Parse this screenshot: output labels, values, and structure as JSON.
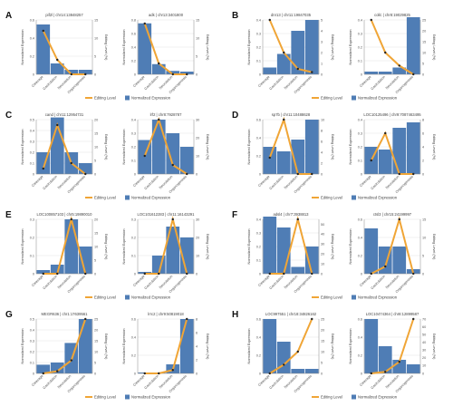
{
  "figure": {
    "legend": {
      "editing": "Editing Level",
      "expression": "Normalized Expression"
    },
    "bar_color": "#4f7db5",
    "line_color": "#f0a536",
    "point_color": "#222222",
    "grid_color": "#e2e2e2"
  },
  "chart_data": [
    {
      "panel": "A",
      "title": "pif2l | chr14:13848257",
      "type": "bar+line",
      "categories": [
        "Cleavage",
        "Gastrulation",
        "Neurulation",
        "Organogenesis"
      ],
      "bars": [
        0.55,
        0.12,
        0.05,
        0.05
      ],
      "ylim_left": [
        0,
        0.6
      ],
      "yticks_left": [
        0,
        0.2,
        0.4,
        0.6
      ],
      "line": [
        12,
        4,
        0,
        0
      ],
      "ylim_right": [
        0,
        15
      ],
      "yticks_right": [
        0,
        5,
        10,
        15
      ],
      "ylabel_left": "Normalized Expression",
      "ylabel_right": "Editing Level (%)"
    },
    {
      "panel": "A",
      "title": "adk | chr13:3401800",
      "type": "bar+line",
      "categories": [
        "Cleavage",
        "Gastrulation",
        "Neurulation",
        "Organogenesis"
      ],
      "bars": [
        0.75,
        0.15,
        0.05,
        0.04
      ],
      "ylim_left": [
        0,
        0.8
      ],
      "yticks_left": [
        0,
        0.2,
        0.4,
        0.6,
        0.8
      ],
      "line": [
        14,
        3,
        0,
        0
      ],
      "ylim_right": [
        0,
        15
      ],
      "yticks_right": [
        0,
        5,
        10,
        15
      ],
      "ylabel_left": "Normalized Expression",
      "ylabel_right": "Editing Level (%)"
    },
    {
      "panel": "B",
      "title": "dnr13 | chr11:19847035",
      "type": "bar+line",
      "categories": [
        "Cleavage",
        "Gastrulation",
        "Neurulation",
        "Organogenesis"
      ],
      "bars": [
        0.05,
        0.15,
        0.32,
        0.4
      ],
      "ylim_left": [
        0,
        0.4
      ],
      "yticks_left": [
        0,
        0.1,
        0.2,
        0.3,
        0.4
      ],
      "line": [
        5,
        2,
        0.5,
        0.2
      ],
      "ylim_right": [
        0,
        5
      ],
      "yticks_right": [
        0,
        1,
        2,
        3,
        4,
        5
      ],
      "ylabel_left": "Normalized Expression",
      "ylabel_right": "Editing Level (%)"
    },
    {
      "panel": "B",
      "title": "collc | chr8:19029825",
      "type": "bar+line",
      "categories": [
        "Cleavage",
        "Gastrulation",
        "Neurulation",
        "Organogenesis"
      ],
      "bars": [
        0.02,
        0.02,
        0.05,
        0.42
      ],
      "ylim_left": [
        0,
        0.4
      ],
      "yticks_left": [
        0,
        0.1,
        0.2,
        0.3,
        0.4
      ],
      "line": [
        25,
        10,
        4,
        0
      ],
      "ylim_right": [
        0,
        25
      ],
      "yticks_right": [
        0,
        5,
        10,
        15,
        20,
        25
      ],
      "ylabel_left": "Normalized Expression",
      "ylabel_right": "Editing Level (%)"
    },
    {
      "panel": "C",
      "title": "cand | chr11:12954731",
      "type": "bar+line",
      "categories": [
        "Cleavage",
        "Gastrulation",
        "Neurulation",
        "Organogenesis"
      ],
      "bars": [
        0.2,
        0.52,
        0.2,
        0.1
      ],
      "ylim_left": [
        0,
        0.5
      ],
      "yticks_left": [
        0,
        0.1,
        0.2,
        0.3,
        0.4,
        0.5
      ],
      "line": [
        2,
        18,
        4,
        0
      ],
      "ylim_right": [
        0,
        20
      ],
      "yticks_right": [
        0,
        5,
        10,
        15,
        20
      ],
      "ylabel_left": "Normalized Expression",
      "ylabel_right": "Editing Level (%)"
    },
    {
      "panel": "C",
      "title": "lrf2 | chr8:7928787",
      "type": "bar+line",
      "categories": [
        "Cleavage",
        "Gastrulation",
        "Neurulation",
        "Organogenesis"
      ],
      "bars": [
        0.25,
        0.4,
        0.3,
        0.2
      ],
      "ylim_left": [
        0,
        0.4
      ],
      "yticks_left": [
        0,
        0.1,
        0.2,
        0.3,
        0.4
      ],
      "line": [
        10,
        30,
        5,
        0
      ],
      "ylim_right": [
        0,
        30
      ],
      "yticks_right": [
        0,
        10,
        20,
        30
      ],
      "ylabel_left": "Normalized Expression",
      "ylabel_right": "Editing Level (%)"
    },
    {
      "panel": "D",
      "title": "sp7b | chr11:10488628",
      "type": "bar+line",
      "categories": [
        "Cleavage",
        "Gastrulation",
        "Neurulation",
        "Organogenesis"
      ],
      "bars": [
        0.3,
        0.25,
        0.38,
        0.6
      ],
      "ylim_left": [
        0,
        0.6
      ],
      "yticks_left": [
        0,
        0.2,
        0.4,
        0.6
      ],
      "line": [
        3,
        10,
        0,
        0
      ],
      "ylim_right": [
        0,
        10
      ],
      "yticks_right": [
        0,
        2,
        4,
        6,
        8,
        10
      ],
      "ylabel_left": "Normalized Expression",
      "ylabel_right": "Editing Level (%)"
    },
    {
      "panel": "D",
      "title": "LOC10125496 | chr9:7087463495",
      "type": "bar+line",
      "categories": [
        "Cleavage",
        "Gastrulation",
        "Neurulation",
        "Organogenesis"
      ],
      "bars": [
        0.2,
        0.18,
        0.34,
        0.38
      ],
      "ylim_left": [
        0,
        0.4
      ],
      "yticks_left": [
        0,
        0.1,
        0.2,
        0.3,
        0.4
      ],
      "line": [
        2,
        6,
        0,
        0
      ],
      "ylim_right": [
        0,
        8
      ],
      "yticks_right": [
        0,
        2,
        4,
        6,
        8
      ],
      "ylabel_left": "Normalized Expression",
      "ylabel_right": "Editing Level (%)"
    },
    {
      "panel": "E",
      "title": "LOC100857103 | chr5:19890010",
      "type": "bar+line",
      "categories": [
        "Cleavage",
        "Gastrulation",
        "Neurulation",
        "Organogenesis"
      ],
      "bars": [
        0.02,
        0.05,
        0.3,
        0.15
      ],
      "ylim_left": [
        0,
        0.3
      ],
      "yticks_left": [
        0,
        0.1,
        0.2,
        0.3
      ],
      "line": [
        0,
        0,
        20,
        0
      ],
      "ylim_right": [
        0,
        20
      ],
      "yticks_right": [
        0,
        5,
        10,
        15,
        20
      ],
      "ylabel_left": "Normalized Expression",
      "ylabel_right": "Editing Level (%)"
    },
    {
      "panel": "E",
      "title": "LOC101612283 | chr11:16143291",
      "type": "bar+line",
      "categories": [
        "Cleavage",
        "Gastrulation",
        "Neurulation",
        "Organogenesis"
      ],
      "bars": [
        0.01,
        0.1,
        0.26,
        0.2
      ],
      "ylim_left": [
        0,
        0.3
      ],
      "yticks_left": [
        0,
        0.1,
        0.2,
        0.3
      ],
      "line": [
        0,
        0,
        30,
        0
      ],
      "ylim_right": [
        0,
        30
      ],
      "yticks_right": [
        0,
        10,
        20,
        30
      ],
      "ylabel_left": "Normalized Expression",
      "ylabel_right": "Editing Level (%)"
    },
    {
      "panel": "F",
      "title": "adsl4 | chr7:3938813",
      "type": "bar+line",
      "categories": [
        "Cleavage",
        "Gastrulation",
        "Neurulation",
        "Organogenesis"
      ],
      "bars": [
        0.42,
        0.34,
        0.05,
        0.2
      ],
      "ylim_left": [
        0,
        0.4
      ],
      "yticks_left": [
        0,
        0.1,
        0.2,
        0.3,
        0.4
      ],
      "line": [
        0,
        0,
        55,
        0
      ],
      "ylim_right": [
        0,
        55
      ],
      "yticks_right": [
        0,
        10,
        20,
        30,
        40,
        50
      ],
      "ylabel_left": "Normalized Expression",
      "ylabel_right": "Editing Level (%)"
    },
    {
      "panel": "F",
      "title": "ctsl3 | chr15:24199997",
      "type": "bar+line",
      "categories": [
        "Cleavage",
        "Gastrulation",
        "Neurulation",
        "Organogenesis"
      ],
      "bars": [
        0.5,
        0.3,
        0.3,
        0.05
      ],
      "ylim_left": [
        0,
        0.6
      ],
      "yticks_left": [
        0,
        0.2,
        0.4,
        0.6
      ],
      "line": [
        0,
        2,
        15,
        0
      ],
      "ylim_right": [
        0,
        15
      ],
      "yticks_right": [
        0,
        5,
        10,
        15
      ],
      "ylabel_left": "Normalized Expression",
      "ylabel_right": "Editing Level (%)"
    },
    {
      "panel": "G",
      "title": "MEGR636 | chr1:17639561",
      "type": "bar+line",
      "categories": [
        "Cleavage",
        "Gastrulation",
        "Neurulation",
        "Organogenesis"
      ],
      "bars": [
        0.08,
        0.1,
        0.28,
        0.5
      ],
      "ylim_left": [
        0,
        0.5
      ],
      "yticks_left": [
        0,
        0.1,
        0.2,
        0.3,
        0.4,
        0.5
      ],
      "line": [
        0,
        1,
        6,
        25
      ],
      "ylim_right": [
        0,
        25
      ],
      "yticks_right": [
        0,
        5,
        10,
        15,
        20,
        25
      ],
      "ylabel_left": "Normalized Expression",
      "ylabel_right": "Editing Level (%)"
    },
    {
      "panel": "G",
      "title": "lrrc2 | chr9:50819018",
      "type": "bar+line",
      "categories": [
        "Cleavage",
        "Gastrulation",
        "Neurulation",
        "Organogenesis"
      ],
      "bars": [
        0.01,
        0.01,
        0.1,
        0.6
      ],
      "ylim_left": [
        0,
        0.6
      ],
      "yticks_left": [
        0,
        0.2,
        0.4,
        0.6
      ],
      "line": [
        0,
        0,
        0.5,
        8
      ],
      "ylim_right": [
        0,
        8
      ],
      "yticks_right": [
        0,
        2,
        4,
        6,
        8
      ],
      "ylabel_left": "Normalized Expression",
      "ylabel_right": "Editing Level (%)"
    },
    {
      "panel": "H",
      "title": "LOC997551 | chr18:34826162",
      "type": "bar+line",
      "categories": [
        "Cleavage",
        "Gastrulation",
        "Neurulation",
        "Organogenesis"
      ],
      "bars": [
        0.6,
        0.35,
        0.05,
        0.05
      ],
      "ylim_left": [
        0,
        0.6
      ],
      "yticks_left": [
        0,
        0.2,
        0.4,
        0.6
      ],
      "line": [
        0,
        4,
        10,
        25
      ],
      "ylim_right": [
        0,
        25
      ],
      "yticks_right": [
        0,
        5,
        10,
        15,
        20,
        25
      ],
      "ylabel_left": "Normalized Expression",
      "ylabel_right": "Editing Level (%)"
    },
    {
      "panel": "H",
      "title": "LOC10474364 | chr8:12899587",
      "type": "bar+line",
      "categories": [
        "Cleavage",
        "Gastrulation",
        "Neurulation",
        "Organogenesis"
      ],
      "bars": [
        0.6,
        0.3,
        0.15,
        0.1
      ],
      "ylim_left": [
        0,
        0.6
      ],
      "yticks_left": [
        0,
        0.2,
        0.4,
        0.6
      ],
      "line": [
        0,
        2,
        15,
        70
      ],
      "ylim_right": [
        0,
        70
      ],
      "yticks_right": [
        0,
        10,
        20,
        30,
        40,
        50,
        60,
        70
      ],
      "ylabel_left": "Normalized Expression",
      "ylabel_right": "Editing Level (%)"
    }
  ]
}
